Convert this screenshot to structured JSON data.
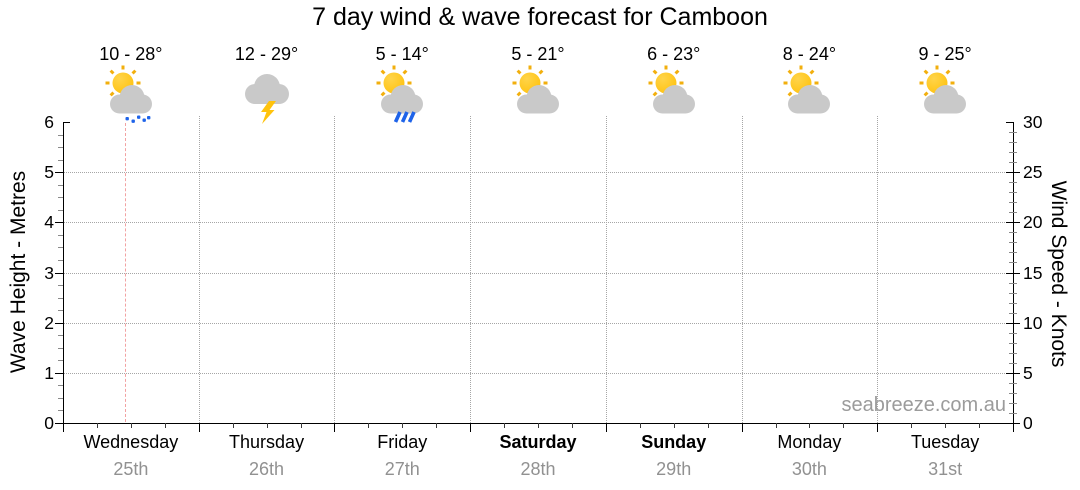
{
  "title": "7 day wind & wave forecast for Camboon",
  "watermark": "seabreeze.com.au",
  "left_axis": {
    "label": "Wave Height - Metres",
    "min": 0,
    "max": 6,
    "ticks": [
      0,
      1,
      2,
      3,
      4,
      5,
      6
    ],
    "minor_step": 0.25
  },
  "right_axis": {
    "label": "Wind Speed - Knots",
    "min": 0,
    "max": 30,
    "ticks": [
      0,
      5,
      10,
      15,
      20,
      25,
      30
    ],
    "minor_step": 1
  },
  "chart_data": {
    "type": "line",
    "title": "7 day wind & wave forecast for Camboon",
    "ylabel_left": "Wave Height - Metres",
    "ylabel_right": "Wind Speed - Knots",
    "ylim_left": [
      0,
      6
    ],
    "ylim_right": [
      0,
      30
    ],
    "grid": true,
    "legend": "none",
    "days": [
      {
        "name": "Wednesday",
        "date": "25th",
        "temp_range": "10 - 28°",
        "icon": "partly-cloudy-drizzle",
        "weekend": false
      },
      {
        "name": "Thursday",
        "date": "26th",
        "temp_range": "12 - 29°",
        "icon": "thunderstorm",
        "weekend": false
      },
      {
        "name": "Friday",
        "date": "27th",
        "temp_range": "5 - 14°",
        "icon": "partly-cloudy-rain",
        "weekend": false
      },
      {
        "name": "Saturday",
        "date": "28th",
        "temp_range": "5 - 21°",
        "icon": "partly-cloudy",
        "weekend": true
      },
      {
        "name": "Sunday",
        "date": "29th",
        "temp_range": "6 - 23°",
        "icon": "partly-cloudy",
        "weekend": true
      },
      {
        "name": "Monday",
        "date": "30th",
        "temp_range": "8 - 24°",
        "icon": "partly-cloudy",
        "weekend": false
      },
      {
        "name": "Tuesday",
        "date": "31st",
        "temp_range": "9 - 25°",
        "icon": "partly-cloudy",
        "weekend": false
      }
    ],
    "series": [
      {
        "name": "Wave Height - Metres",
        "values": []
      },
      {
        "name": "Wind Speed - Knots",
        "values": []
      }
    ],
    "current_time_marker": {
      "day_index": 0,
      "day_fraction": 0.46
    }
  },
  "colors": {
    "sun": "#FFC20E",
    "sun_light": "#FFD44A",
    "sun_rays": "#F2AF0D",
    "cloud": "#C9C9C9",
    "precipitation": "#1E63E9",
    "lightning": "#FFC30D",
    "current_time_line": "#F2A2A2",
    "gridline": "#A6A6A6",
    "date_text": "#919191",
    "watermark_text": "#9B9B9B"
  }
}
